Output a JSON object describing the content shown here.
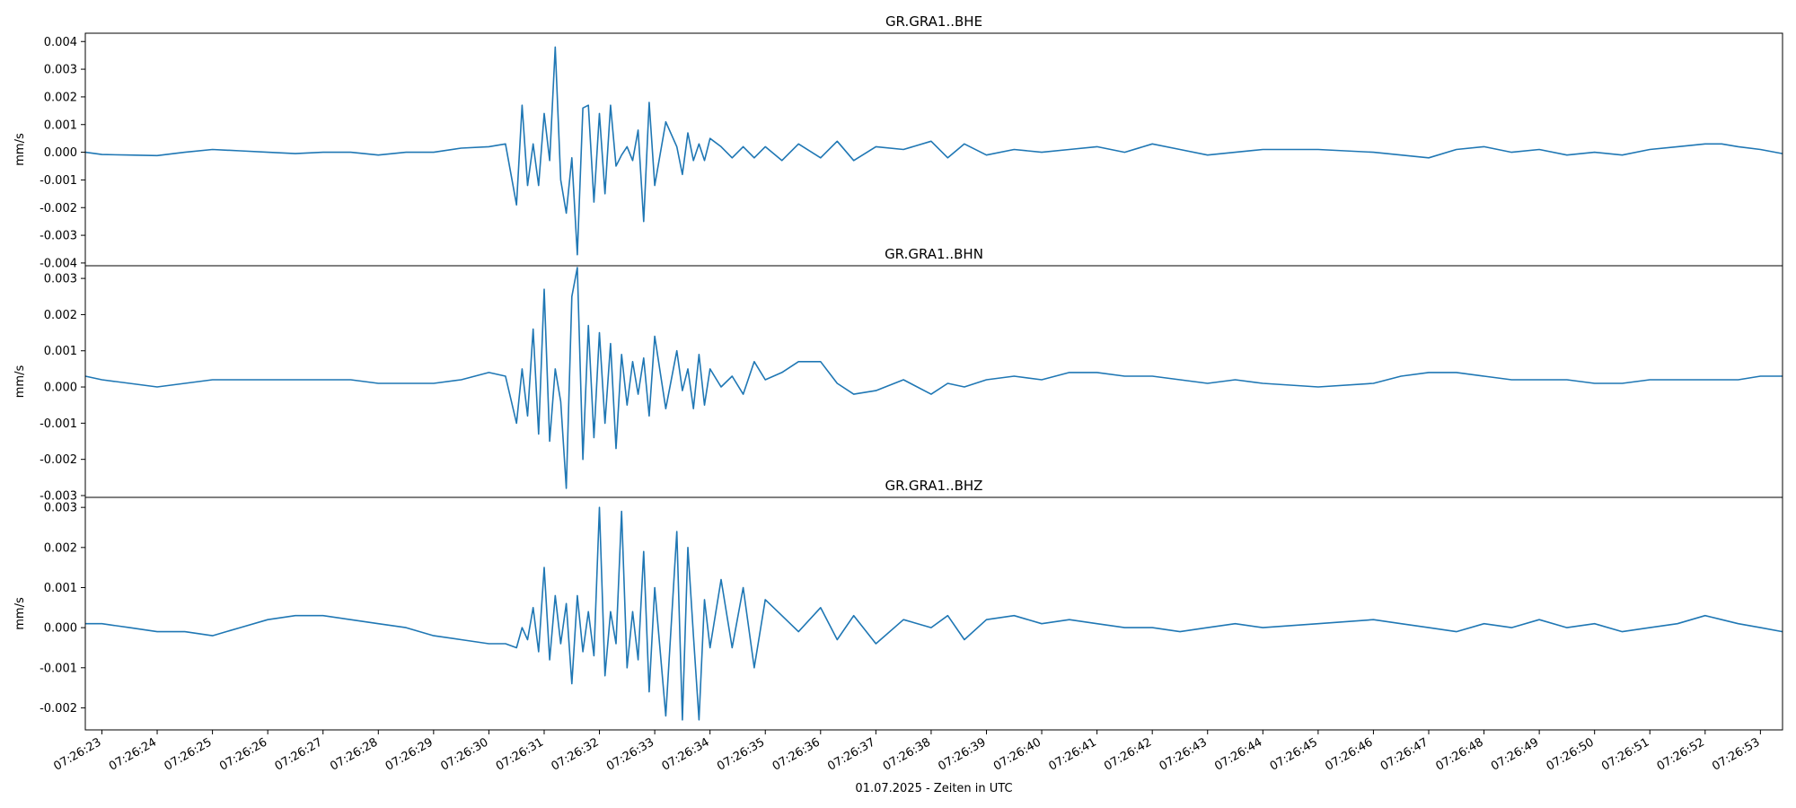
{
  "figure": {
    "xlabel": "01.07.2025 - Zeiten in UTC",
    "line_color": "#1f77b4",
    "x_ticks": [
      "07:26:23",
      "07:26:24",
      "07:26:25",
      "07:26:26",
      "07:26:27",
      "07:26:28",
      "07:26:29",
      "07:26:30",
      "07:26:31",
      "07:26:32",
      "07:26:33",
      "07:26:34",
      "07:26:35",
      "07:26:36",
      "07:26:37",
      "07:26:38",
      "07:26:39",
      "07:26:40",
      "07:26:41",
      "07:26:42",
      "07:26:43",
      "07:26:44",
      "07:26:45",
      "07:26:46",
      "07:26:47",
      "07:26:48",
      "07:26:49",
      "07:26:50",
      "07:26:51",
      "07:26:52",
      "07:26:53"
    ]
  },
  "chart_data": [
    {
      "type": "line",
      "title": "GR.GRA1..BHE",
      "xlabel": "",
      "ylabel": "mm/s",
      "xlim": [
        "07:26:22.700",
        "07:26:53.400"
      ],
      "ylim": [
        -0.0041,
        0.0043
      ],
      "y_ticks": [
        "-0.004",
        "-0.003",
        "-0.002",
        "-0.001",
        "0.000",
        "0.001",
        "0.002",
        "0.003",
        "0.004"
      ],
      "y_tick_values": [
        -0.004,
        -0.003,
        -0.002,
        -0.001,
        0,
        0.001,
        0.002,
        0.003,
        0.004
      ],
      "grid": false,
      "x_seconds": [
        22.7,
        23.0,
        23.5,
        24.0,
        24.5,
        25.0,
        25.5,
        26.0,
        26.5,
        27.0,
        27.5,
        28.0,
        28.5,
        29.0,
        29.5,
        30.0,
        30.3,
        30.5,
        30.6,
        30.7,
        30.8,
        30.9,
        31.0,
        31.1,
        31.2,
        31.3,
        31.4,
        31.5,
        31.6,
        31.7,
        31.8,
        31.9,
        32.0,
        32.1,
        32.2,
        32.3,
        32.4,
        32.5,
        32.6,
        32.7,
        32.8,
        32.9,
        33.0,
        33.2,
        33.4,
        33.5,
        33.6,
        33.7,
        33.8,
        33.9,
        34.0,
        34.2,
        34.4,
        34.6,
        34.8,
        35.0,
        35.3,
        35.6,
        36.0,
        36.3,
        36.6,
        37.0,
        37.5,
        38.0,
        38.3,
        38.6,
        39.0,
        39.5,
        40.0,
        40.5,
        41.0,
        41.5,
        42.0,
        42.5,
        43.0,
        43.5,
        44.0,
        45.0,
        46.0,
        46.5,
        47.0,
        47.5,
        48.0,
        48.5,
        49.0,
        49.5,
        50.0,
        50.5,
        51.0,
        51.5,
        52.0,
        52.3,
        52.6,
        53.0,
        53.4
      ],
      "values": [
        0.0,
        -8e-05,
        -0.0001,
        -0.00012,
        0.0,
        0.0001,
        5e-05,
        0.0,
        -5e-05,
        0.0,
        0.0,
        -0.0001,
        0.0,
        0.0,
        0.00015,
        0.0002,
        0.0003,
        -0.0019,
        0.0017,
        -0.0012,
        0.0003,
        -0.0012,
        0.0014,
        -0.0003,
        0.0038,
        -0.001,
        -0.0022,
        -0.0002,
        -0.0037,
        0.0016,
        0.0017,
        -0.0018,
        0.0014,
        -0.0015,
        0.0017,
        -0.0005,
        -0.0001,
        0.0002,
        -0.0003,
        0.0008,
        -0.0025,
        0.0018,
        -0.0012,
        0.0011,
        0.0002,
        -0.0008,
        0.0007,
        -0.0003,
        0.0003,
        -0.0003,
        0.0005,
        0.0002,
        -0.0002,
        0.0002,
        -0.0002,
        0.0002,
        -0.0003,
        0.0003,
        -0.0002,
        0.0004,
        -0.0003,
        0.0002,
        0.0001,
        0.0004,
        -0.0002,
        0.0003,
        -0.0001,
        0.0001,
        0.0,
        0.0001,
        0.0002,
        0.0,
        0.0003,
        0.0001,
        -0.0001,
        0.0,
        0.0001,
        0.0001,
        0.0,
        -0.0001,
        -0.0002,
        0.0001,
        0.0002,
        0.0,
        0.0001,
        -0.0001,
        0.0,
        -0.0001,
        0.0001,
        0.0002,
        0.0003,
        0.0003,
        0.0002,
        0.0001,
        -5e-05
      ]
    },
    {
      "type": "line",
      "title": "GR.GRA1..BHN",
      "xlabel": "",
      "ylabel": "mm/s",
      "xlim": [
        "07:26:22.700",
        "07:26:53.400"
      ],
      "ylim": [
        -0.00305,
        0.00335
      ],
      "y_ticks": [
        "-0.003",
        "-0.002",
        "-0.001",
        "0.000",
        "0.001",
        "0.002",
        "0.003"
      ],
      "y_tick_values": [
        -0.003,
        -0.002,
        -0.001,
        0,
        0.001,
        0.002,
        0.003
      ],
      "grid": false,
      "x_seconds": [
        22.7,
        23.0,
        23.5,
        24.0,
        24.5,
        25.0,
        25.5,
        26.0,
        26.5,
        27.0,
        27.5,
        28.0,
        28.5,
        29.0,
        29.5,
        30.0,
        30.3,
        30.5,
        30.6,
        30.7,
        30.8,
        30.9,
        31.0,
        31.1,
        31.2,
        31.3,
        31.4,
        31.5,
        31.6,
        31.7,
        31.8,
        31.9,
        32.0,
        32.1,
        32.2,
        32.3,
        32.4,
        32.5,
        32.6,
        32.7,
        32.8,
        32.9,
        33.0,
        33.2,
        33.4,
        33.5,
        33.6,
        33.7,
        33.8,
        33.9,
        34.0,
        34.2,
        34.4,
        34.6,
        34.8,
        35.0,
        35.3,
        35.6,
        36.0,
        36.3,
        36.6,
        37.0,
        37.5,
        38.0,
        38.3,
        38.6,
        39.0,
        39.5,
        40.0,
        40.5,
        41.0,
        41.5,
        42.0,
        42.5,
        43.0,
        43.5,
        44.0,
        45.0,
        46.0,
        46.5,
        47.0,
        47.5,
        48.0,
        48.5,
        49.0,
        49.5,
        50.0,
        50.5,
        51.0,
        51.5,
        52.0,
        52.3,
        52.6,
        53.0,
        53.4
      ],
      "values": [
        0.0003,
        0.0002,
        0.0001,
        0.0,
        0.0001,
        0.0002,
        0.0002,
        0.0002,
        0.0002,
        0.0002,
        0.0002,
        0.0001,
        0.0001,
        0.0001,
        0.0002,
        0.0004,
        0.0003,
        -0.001,
        0.0005,
        -0.0008,
        0.0016,
        -0.0013,
        0.0027,
        -0.0015,
        0.0005,
        -0.0004,
        -0.0028,
        0.0025,
        0.0033,
        -0.002,
        0.0017,
        -0.0014,
        0.0015,
        -0.001,
        0.0012,
        -0.0017,
        0.0009,
        -0.0005,
        0.0007,
        -0.0002,
        0.0008,
        -0.0008,
        0.0014,
        -0.0006,
        0.001,
        -0.0001,
        0.0005,
        -0.0006,
        0.0009,
        -0.0005,
        0.0005,
        0.0,
        0.0003,
        -0.0002,
        0.0007,
        0.0002,
        0.0004,
        0.0007,
        0.0007,
        0.0001,
        -0.0002,
        -0.0001,
        0.0002,
        -0.0002,
        0.0001,
        0.0,
        0.0002,
        0.0003,
        0.0002,
        0.0004,
        0.0004,
        0.0003,
        0.0003,
        0.0002,
        0.0001,
        0.0002,
        0.0001,
        0.0,
        0.0001,
        0.0003,
        0.0004,
        0.0004,
        0.0003,
        0.0002,
        0.0002,
        0.0002,
        0.0001,
        0.0001,
        0.0002,
        0.0002,
        0.0002,
        0.0002,
        0.0002,
        0.0003,
        0.0003
      ]
    },
    {
      "type": "line",
      "title": "GR.GRA1..BHZ",
      "xlabel": "01.07.2025 - Zeiten in UTC",
      "ylabel": "mm/s",
      "xlim": [
        "07:26:22.700",
        "07:26:53.400"
      ],
      "ylim": [
        -0.00255,
        0.00325
      ],
      "y_ticks": [
        "-0.002",
        "-0.001",
        "0.000",
        "0.001",
        "0.002",
        "0.003"
      ],
      "y_tick_values": [
        -0.002,
        -0.001,
        0,
        0.001,
        0.002,
        0.003
      ],
      "grid": false,
      "x_seconds": [
        22.7,
        23.0,
        23.5,
        24.0,
        24.5,
        25.0,
        25.5,
        26.0,
        26.5,
        27.0,
        27.5,
        28.0,
        28.5,
        29.0,
        29.5,
        30.0,
        30.3,
        30.5,
        30.6,
        30.7,
        30.8,
        30.9,
        31.0,
        31.1,
        31.2,
        31.3,
        31.4,
        31.5,
        31.6,
        31.7,
        31.8,
        31.9,
        32.0,
        32.1,
        32.2,
        32.3,
        32.4,
        32.5,
        32.6,
        32.7,
        32.8,
        32.9,
        33.0,
        33.2,
        33.4,
        33.5,
        33.6,
        33.7,
        33.8,
        33.9,
        34.0,
        34.2,
        34.4,
        34.6,
        34.8,
        35.0,
        35.3,
        35.6,
        36.0,
        36.3,
        36.6,
        37.0,
        37.5,
        38.0,
        38.3,
        38.6,
        39.0,
        39.5,
        40.0,
        40.5,
        41.0,
        41.5,
        42.0,
        42.5,
        43.0,
        43.5,
        44.0,
        45.0,
        46.0,
        46.5,
        47.0,
        47.5,
        48.0,
        48.5,
        49.0,
        49.5,
        50.0,
        50.5,
        51.0,
        51.5,
        52.0,
        52.3,
        52.6,
        53.0,
        53.4
      ],
      "values": [
        0.0001,
        0.0001,
        0.0,
        -0.0001,
        -0.0001,
        -0.0002,
        0.0,
        0.0002,
        0.0003,
        0.0003,
        0.0002,
        0.0001,
        0.0,
        -0.0002,
        -0.0003,
        -0.0004,
        -0.0004,
        -0.0005,
        0.0,
        -0.0003,
        0.0005,
        -0.0006,
        0.0015,
        -0.0008,
        0.0008,
        -0.0004,
        0.0006,
        -0.0014,
        0.0008,
        -0.0006,
        0.0004,
        -0.0007,
        0.003,
        -0.0012,
        0.0004,
        -0.0004,
        0.0029,
        -0.001,
        0.0004,
        -0.0008,
        0.0019,
        -0.0016,
        0.001,
        -0.0022,
        0.0024,
        -0.0023,
        0.002,
        -0.0002,
        -0.0023,
        0.0007,
        -0.0005,
        0.0012,
        -0.0005,
        0.001,
        -0.001,
        0.0007,
        0.0003,
        -0.0001,
        0.0005,
        -0.0003,
        0.0003,
        -0.0004,
        0.0002,
        0.0,
        0.0003,
        -0.0003,
        0.0002,
        0.0003,
        0.0001,
        0.0002,
        0.0001,
        0.0,
        0.0,
        -0.0001,
        0.0,
        0.0001,
        0.0,
        0.0001,
        0.0002,
        0.0001,
        0.0,
        -0.0001,
        0.0001,
        0.0,
        0.0002,
        0.0,
        0.0001,
        -0.0001,
        0.0,
        0.0001,
        0.0003,
        0.0002,
        0.0001,
        0.0,
        -0.0001
      ]
    }
  ]
}
